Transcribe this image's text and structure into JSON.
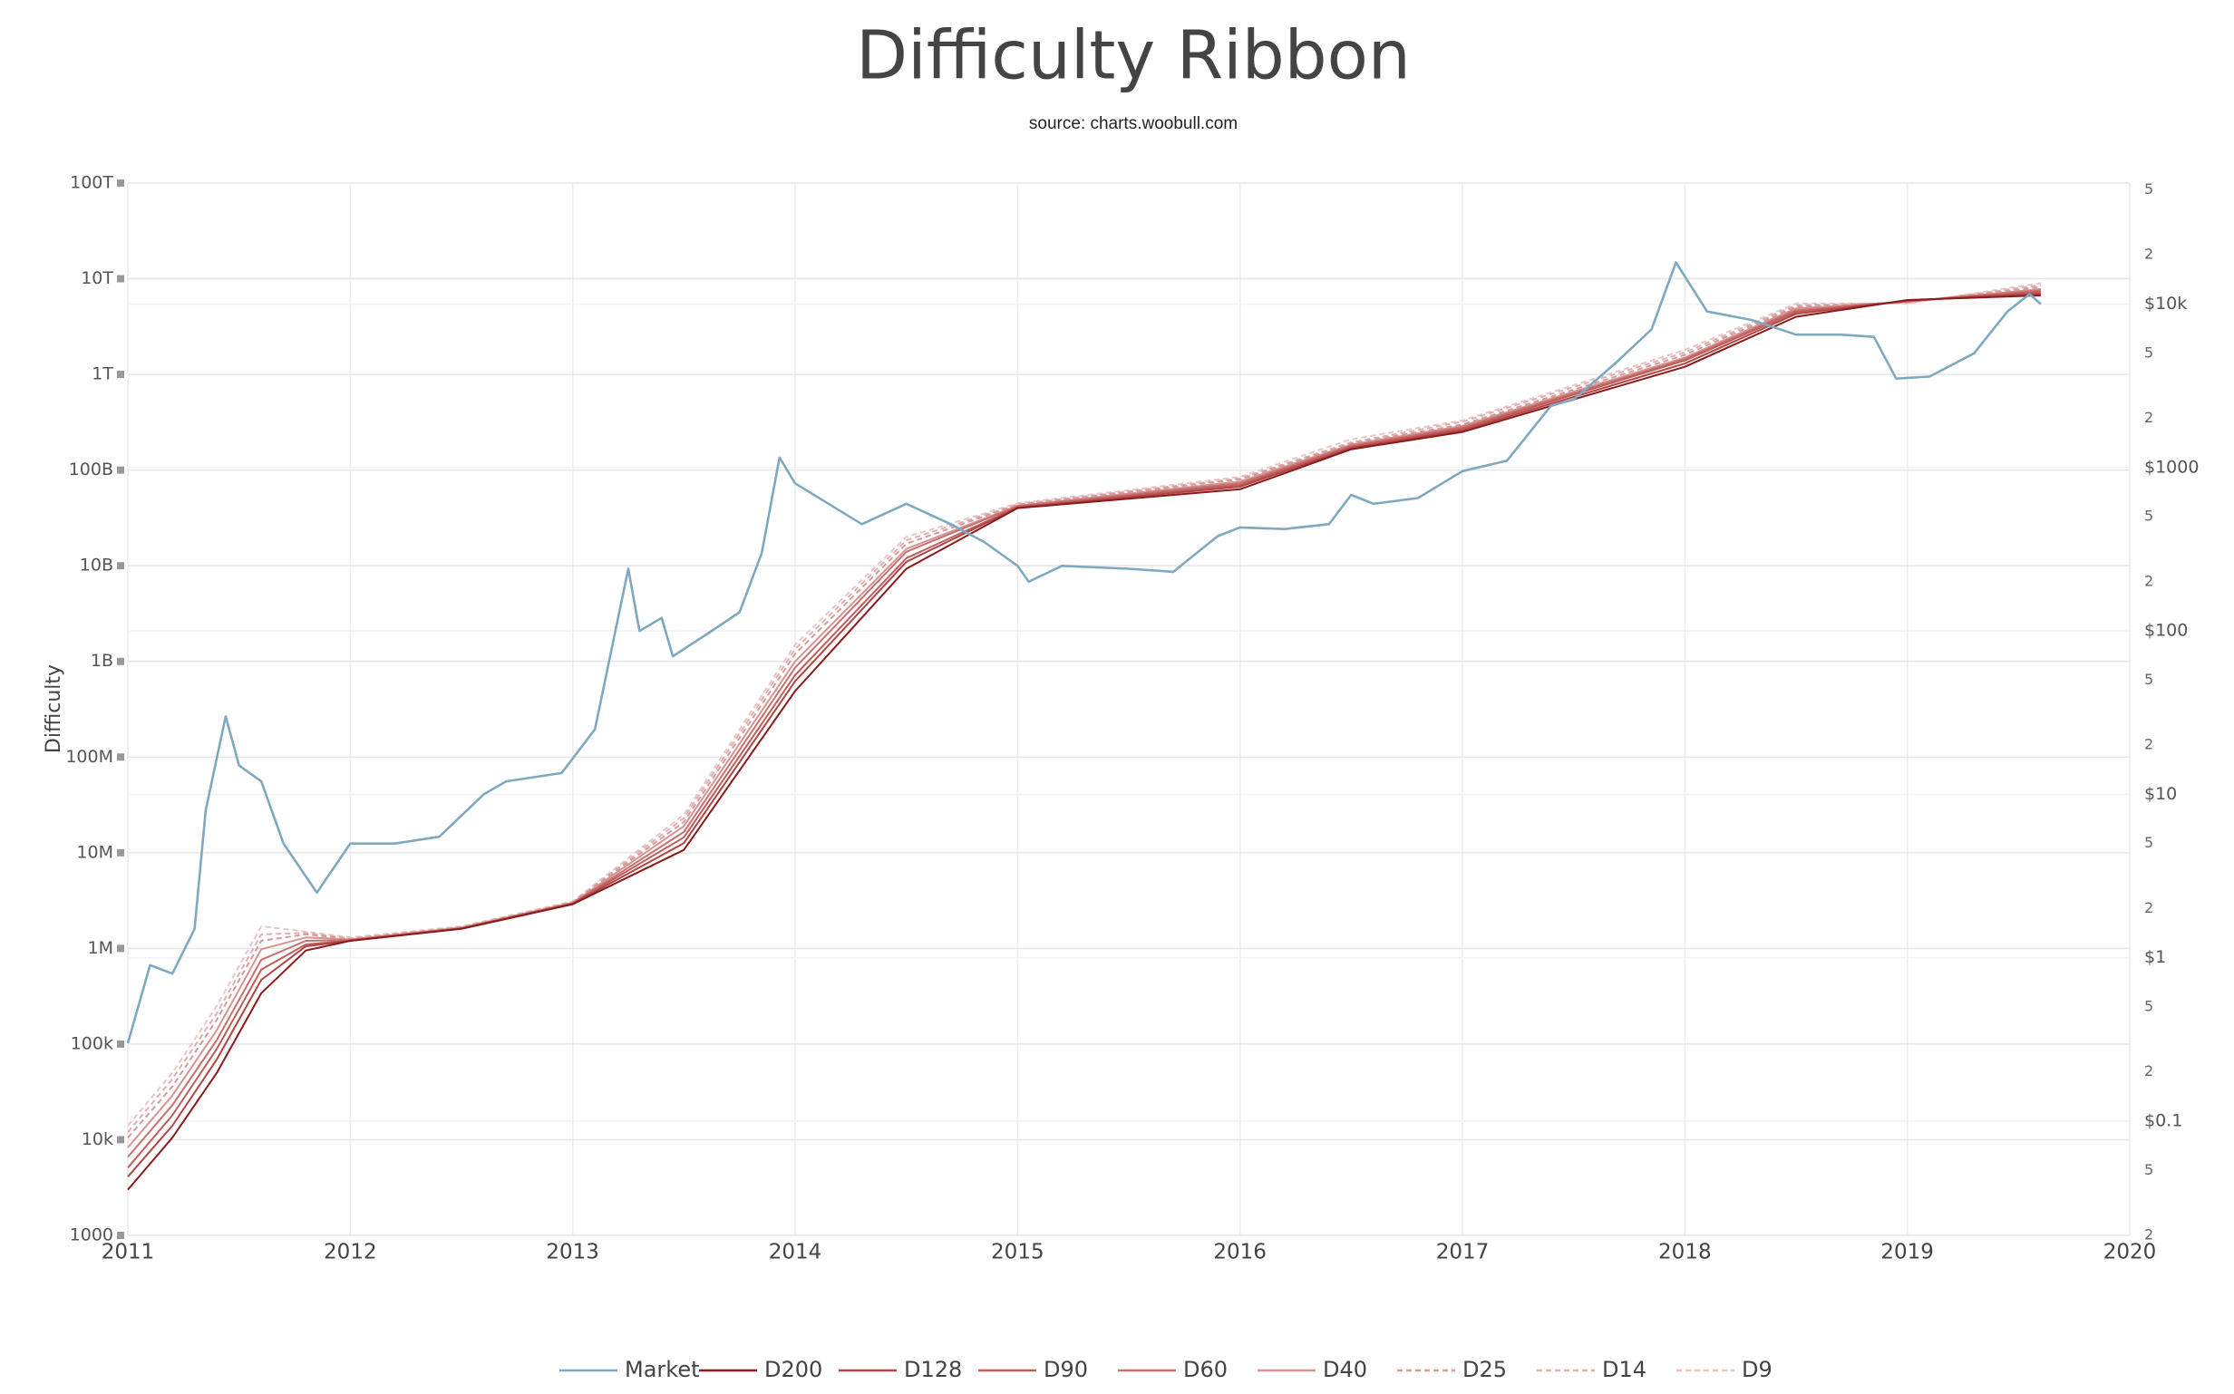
{
  "chart_data": {
    "type": "line",
    "title": "Difficulty Ribbon",
    "subtitle": "source: charts.woobull.com",
    "y_label": "Difficulty",
    "xlim": [
      2011,
      2020
    ],
    "xticks": [
      2011,
      2012,
      2013,
      2014,
      2015,
      2016,
      2017,
      2018,
      2019,
      2020
    ],
    "ylim": [
      1000,
      100000000000000
    ],
    "yticks": [
      1000,
      {
        "value": 10000,
        "label": "10k"
      },
      {
        "value": 100000,
        "label": "100k"
      },
      {
        "value": 1000000,
        "label": "1M"
      },
      {
        "value": 10000000,
        "label": "10M"
      },
      {
        "value": 100000000,
        "label": "100M"
      },
      {
        "value": 1000000000,
        "label": "1B"
      },
      {
        "value": 10000000000,
        "label": "10B"
      },
      {
        "value": 100000000000,
        "label": "100B"
      },
      {
        "value": 1000000000000,
        "label": "1T"
      },
      {
        "value": 10000000000000,
        "label": "10T"
      },
      {
        "value": 100000000000000,
        "label": "100T"
      }
    ],
    "y_log": true,
    "y2lim": [
      0.02,
      55000
    ],
    "y2ticks": [
      {
        "value": 0.02,
        "label": "2"
      },
      {
        "value": 0.05,
        "label": "5"
      },
      {
        "value": 0.1,
        "label": "$0.1"
      },
      {
        "value": 0.2,
        "label": "2"
      },
      {
        "value": 0.5,
        "label": "5"
      },
      {
        "value": 1,
        "label": "$1"
      },
      2,
      5,
      {
        "value": 10,
        "label": "$10"
      },
      {
        "value": 20,
        "label": "2"
      },
      {
        "value": 50,
        "label": "5"
      },
      {
        "value": 100,
        "label": "$100"
      },
      {
        "value": 200,
        "label": "2"
      },
      {
        "value": 500,
        "label": "5"
      },
      {
        "value": 1000,
        "label": "$1000"
      },
      {
        "value": 2000,
        "label": "2"
      },
      {
        "value": 5000,
        "label": "5"
      },
      {
        "value": 10000,
        "label": "$10k"
      },
      {
        "value": 20000,
        "label": "2"
      },
      {
        "value": 50000,
        "label": "5"
      }
    ],
    "y2_log": true,
    "grid": true,
    "legend": "bottom",
    "series": [
      {
        "name": "Market",
        "color": "#7ea9c1",
        "axis": "y2",
        "dash": false,
        "x": [
          2011.0,
          2011.1,
          2011.2,
          2011.3,
          2011.35,
          2011.44,
          2011.5,
          2011.6,
          2011.7,
          2011.85,
          2012.0,
          2012.2,
          2012.4,
          2012.6,
          2012.7,
          2012.95,
          2013.1,
          2013.25,
          2013.3,
          2013.4,
          2013.45,
          2013.6,
          2013.75,
          2013.85,
          2013.93,
          2014.0,
          2014.15,
          2014.3,
          2014.5,
          2014.7,
          2014.85,
          2015.0,
          2015.05,
          2015.2,
          2015.5,
          2015.7,
          2015.9,
          2016.0,
          2016.2,
          2016.4,
          2016.5,
          2016.6,
          2016.8,
          2017.0,
          2017.2,
          2017.4,
          2017.5,
          2017.7,
          2017.85,
          2017.96,
          2018.1,
          2018.3,
          2018.5,
          2018.7,
          2018.85,
          2018.95,
          2019.1,
          2019.3,
          2019.45,
          2019.55,
          2019.6
        ],
        "values": [
          0.3,
          0.9,
          0.8,
          1.5,
          8,
          30,
          15,
          12,
          5,
          2.5,
          5,
          5,
          5.5,
          10,
          12,
          13.5,
          25,
          240,
          100,
          120,
          70,
          95,
          130,
          300,
          1150,
          800,
          600,
          450,
          600,
          450,
          350,
          250,
          200,
          250,
          240,
          230,
          380,
          430,
          420,
          450,
          680,
          600,
          650,
          950,
          1100,
          2400,
          2600,
          4500,
          7000,
          18000,
          9000,
          8000,
          6500,
          6500,
          6300,
          3500,
          3600,
          5000,
          9000,
          11500,
          10000
        ]
      },
      {
        "name": "D200",
        "color": "#8b1a1a",
        "dash": false,
        "x": [
          2011.0,
          2011.2,
          2011.4,
          2011.6,
          2011.8,
          2012.0,
          2012.5,
          2013.0,
          2013.5,
          2014.0,
          2014.5,
          2015.0,
          2016.0,
          2016.5,
          2017.0,
          2018.0,
          2018.5,
          2019.0,
          2019.6
        ],
        "values": [
          3000.0,
          10500.0,
          50000.0,
          340000.0,
          950000.0,
          1200000.0,
          1600000.0,
          2900000.0,
          10700000.0,
          490000000.0,
          9300000000.0,
          40000000000.0,
          63000000000.0,
          165000000000.0,
          250000000000.0,
          1200000000000.0,
          4000000000000.0,
          6000000000000.0,
          6700000000000.0
        ]
      },
      {
        "name": "D128",
        "color": "#b04545",
        "dash": false,
        "x": [
          2011.0,
          2011.2,
          2011.4,
          2011.6,
          2011.8,
          2012.0,
          2012.5,
          2013.0,
          2013.5,
          2014.0,
          2014.5,
          2015.0,
          2016.0,
          2016.5,
          2017.0,
          2018.0,
          2018.5,
          2019.0,
          2019.6
        ],
        "values": [
          4100.0,
          14000.0,
          69000.0,
          470000.0,
          1050000.0,
          1200000.0,
          1610000.0,
          2920000.0,
          12600000.0,
          620000000.0,
          11000000000.0,
          40500000000.0,
          67000000000.0,
          170000000000.0,
          260000000000.0,
          1300000000000.0,
          4300000000000.0,
          5900000000000.0,
          7000000000000.0
        ]
      },
      {
        "name": "D90",
        "color": "#c05c5c",
        "dash": false,
        "x": [
          2011.0,
          2011.2,
          2011.4,
          2011.6,
          2011.8,
          2012.0,
          2012.5,
          2013.0,
          2013.5,
          2014.0,
          2014.5,
          2015.0,
          2016.0,
          2016.5,
          2017.0,
          2018.0,
          2018.5,
          2019.0,
          2019.6
        ],
        "values": [
          5100.0,
          18000.0,
          89000.0,
          600000.0,
          1100000.0,
          1210000.0,
          1620000.0,
          2950000.0,
          14500000.0,
          720000000.0,
          12000000000.0,
          41000000000.0,
          70000000000.0,
          175000000000.0,
          270000000000.0,
          1400000000000.0,
          4500000000000.0,
          5850000000000.0,
          7300000000000.0
        ]
      },
      {
        "name": "D60",
        "color": "#c97070",
        "dash": false,
        "x": [
          2011.0,
          2011.2,
          2011.4,
          2011.6,
          2011.8,
          2012.0,
          2012.5,
          2013.0,
          2013.5,
          2014.0,
          2014.5,
          2015.0,
          2016.0,
          2016.5,
          2017.0,
          2018.0,
          2018.5,
          2019.0,
          2019.6
        ],
        "values": [
          6600.0,
          23000.0,
          110000.0,
          760000.0,
          1200000.0,
          1220000.0,
          1630000.0,
          2970000.0,
          16500000.0,
          860000000.0,
          14000000000.0,
          42000000000.0,
          73000000000.0,
          180000000000.0,
          280000000000.0,
          1450000000000.0,
          4700000000000.0,
          5800000000000.0,
          7600000000000.0
        ]
      },
      {
        "name": "D40",
        "color": "#d69393",
        "dash": false,
        "x": [
          2011.0,
          2011.2,
          2011.4,
          2011.6,
          2011.8,
          2012.0,
          2012.5,
          2013.0,
          2013.5,
          2014.0,
          2014.5,
          2015.0,
          2016.0,
          2016.5,
          2017.0,
          2018.0,
          2018.5,
          2019.0,
          2019.6
        ],
        "values": [
          8300.0,
          29000.0,
          140000.0,
          980000.0,
          1300000.0,
          1240000.0,
          1650000.0,
          3000000.0,
          19000000.0,
          1000000000.0,
          15000000000.0,
          42500000000.0,
          76000000000.0,
          185000000000.0,
          290000000000.0,
          1500000000000.0,
          4900000000000.0,
          5750000000000.0,
          7800000000000.0
        ]
      },
      {
        "name": "D25",
        "color": "#d69a9a",
        "dash": true,
        "x": [
          2011.0,
          2011.2,
          2011.4,
          2011.6,
          2011.8,
          2012.0,
          2012.5,
          2013.0,
          2013.5,
          2014.0,
          2014.5,
          2015.0,
          2016.0,
          2016.5,
          2017.0,
          2018.0,
          2018.5,
          2019.0,
          2019.6
        ],
        "values": [
          10500.0,
          36000.0,
          180000.0,
          1200000.0,
          1400000.0,
          1260000.0,
          1660000.0,
          3030000.0,
          21000000.0,
          1200000000.0,
          17000000000.0,
          43500000000.0,
          80000000000.0,
          190000000000.0,
          300000000000.0,
          1600000000000.0,
          5100000000000.0,
          5650000000000.0,
          8200000000000.0
        ]
      },
      {
        "name": "D14",
        "color": "#e0b0b0",
        "dash": true,
        "x": [
          2011.0,
          2011.2,
          2011.4,
          2011.6,
          2011.8,
          2012.0,
          2012.5,
          2013.0,
          2013.5,
          2014.0,
          2014.5,
          2015.0,
          2016.0,
          2016.5,
          2017.0,
          2018.0,
          2018.5,
          2019.0,
          2019.6
        ],
        "values": [
          12000.0,
          43000.0,
          210000.0,
          1400000.0,
          1450000.0,
          1270000.0,
          1680000.0,
          3060000.0,
          23000000.0,
          1350000000.0,
          18500000000.0,
          44000000000.0,
          82000000000.0,
          195000000000.0,
          320000000000.0,
          1700000000000.0,
          5300000000000.0,
          5600000000000.0,
          8600000000000.0
        ]
      },
      {
        "name": "D9",
        "color": "#e8c6c6",
        "dash": true,
        "x": [
          2011.0,
          2011.2,
          2011.4,
          2011.6,
          2011.8,
          2012.0,
          2012.5,
          2013.0,
          2013.5,
          2014.0,
          2014.5,
          2015.0,
          2016.0,
          2016.5,
          2017.0,
          2018.0,
          2018.5,
          2019.0,
          2019.6
        ],
        "values": [
          14000.0,
          50000.0,
          250000.0,
          1700000.0,
          1500000.0,
          1300000.0,
          1700000.0,
          3100000.0,
          25000000.0,
          1500000000.0,
          20000000000.0,
          45000000000.0,
          85000000000.0,
          210000000000.0,
          330000000000.0,
          1800000000000.0,
          5500000000000.0,
          5500000000000.0,
          9000000000000.0
        ]
      }
    ]
  }
}
